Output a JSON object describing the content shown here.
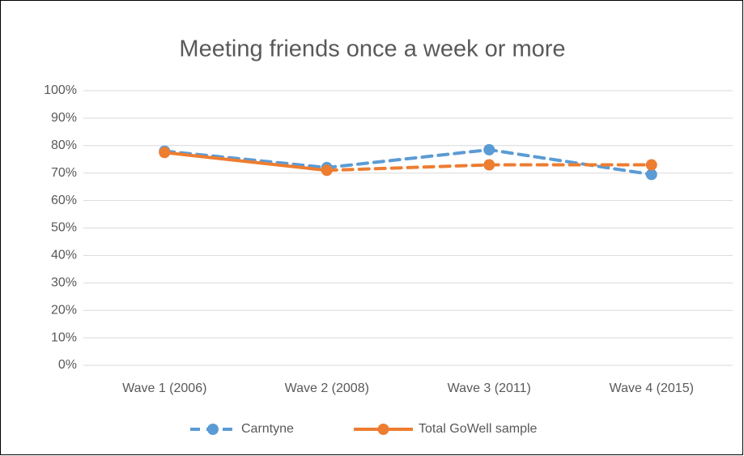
{
  "chart_data": {
    "type": "line",
    "title": "Meeting friends once a week or more",
    "categories": [
      "Wave 1 (2006)",
      "Wave 2 (2008)",
      "Wave 3 (2011)",
      "Wave 4 (2015)"
    ],
    "series": [
      {
        "name": "Carntyne",
        "color": "#5b9bd5",
        "line_style": "dashed",
        "values": [
          78,
          72,
          78.5,
          69.5
        ]
      },
      {
        "name": "Total GoWell sample",
        "color": "#ed7d31",
        "line_style": "solid",
        "dashed_after_index": 1,
        "values": [
          77.5,
          71,
          73,
          73
        ]
      }
    ],
    "ylim": [
      0,
      100
    ],
    "yticks": [
      {
        "value": 0,
        "label": "0%"
      },
      {
        "value": 10,
        "label": "10%"
      },
      {
        "value": 20,
        "label": "20%"
      },
      {
        "value": 30,
        "label": "30%"
      },
      {
        "value": 40,
        "label": "40%"
      },
      {
        "value": 50,
        "label": "50%"
      },
      {
        "value": 60,
        "label": "60%"
      },
      {
        "value": 70,
        "label": "70%"
      },
      {
        "value": 80,
        "label": "80%"
      },
      {
        "value": 90,
        "label": "90%"
      },
      {
        "value": 100,
        "label": "100%"
      }
    ],
    "grid": true,
    "legend": "bottom"
  }
}
